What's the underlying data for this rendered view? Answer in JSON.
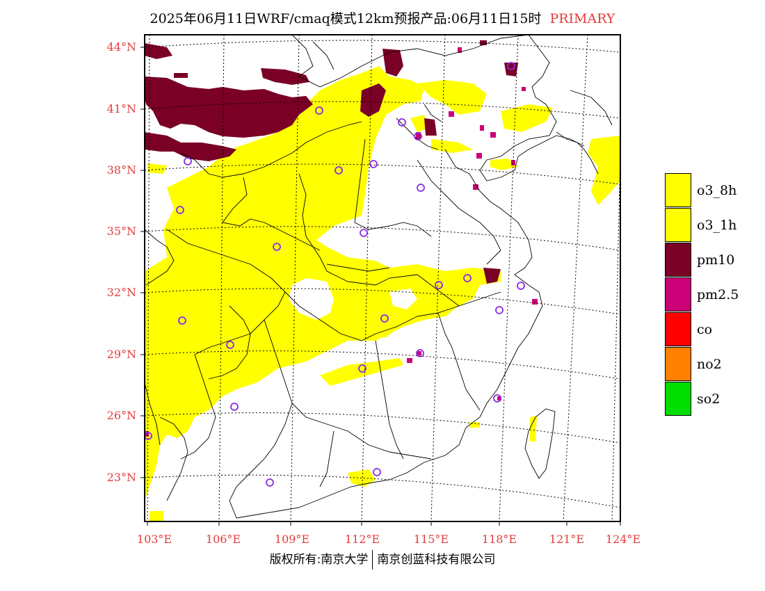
{
  "title": {
    "main": "2025年06月11日WRF/cmaq模式12km预报产品:06月11日15时",
    "primary_label": "PRIMARY"
  },
  "map": {
    "lon_ticks": [
      "103°E",
      "106°E",
      "109°E",
      "112°E",
      "115°E",
      "118°E",
      "121°E",
      "124°E"
    ],
    "lat_ticks": [
      "44°N",
      "41°N",
      "38°N",
      "35°N",
      "32°N",
      "29°N",
      "26°N",
      "23°N"
    ],
    "colors": {
      "o3": "#ffff00",
      "pm10": "#7a0026",
      "pm25": "#cc0077",
      "marker": "#8a2be2",
      "tick": "#e53b3b"
    }
  },
  "legend": {
    "items": [
      {
        "label": "o3_8h",
        "color": "#ffff00"
      },
      {
        "label": "o3_1h",
        "color": "#ffff00"
      },
      {
        "label": "pm10",
        "color": "#7a0026"
      },
      {
        "label": "pm2.5",
        "color": "#cc0077"
      },
      {
        "label": "co",
        "color": "#ff0000"
      },
      {
        "label": "no2",
        "color": "#ff8000"
      },
      {
        "label": "so2",
        "color": "#00dd00"
      }
    ]
  },
  "footer": {
    "left": "版权所有:南京大学",
    "right": "南京创蓝科技有限公司"
  }
}
